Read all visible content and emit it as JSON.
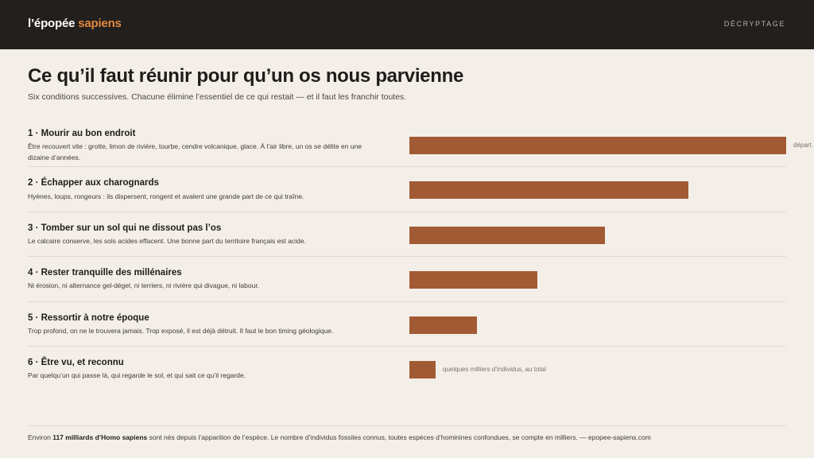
{
  "header": {
    "brand_main": "l’épopée ",
    "brand_accent": "sapiens",
    "nav_label": "DÉCRYPTAGE"
  },
  "page": {
    "title": "Ce qu’il faut réunir pour qu’un os nous parvienne",
    "subtitle": "Six conditions successives. Chacune élimine l’essentiel de ce qui restait — et il faut les franchir toutes."
  },
  "conditions": [
    {
      "title": "1 · Mourir au bon endroit",
      "desc": "Être recouvert vite : grotte, limon de rivière, tourbe, cendre volcanique, glace. À l’air libre, un os se délite en une dizaine d’années.",
      "relative_level": 1.0,
      "bar_label": "départ"
    },
    {
      "title": "2 · Échapper aux charognards",
      "desc": "Hyènes, loups, rongeurs : ils dispersent, rongent et avalent une grande part de ce qui traîne.",
      "relative_level": 0.74,
      "bar_label": ""
    },
    {
      "title": "3 · Tomber sur un sol qui ne dissout pas l’os",
      "desc": "Le calcaire conserve, les sols acides effacent. Une bonne part du territoire français est acide.",
      "relative_level": 0.52,
      "bar_label": ""
    },
    {
      "title": "4 · Rester tranquille des millénaires",
      "desc": "Ni érosion, ni alternance gel-dégel, ni terriers, ni rivière qui divague, ni labour.",
      "relative_level": 0.34,
      "bar_label": ""
    },
    {
      "title": "5 · Ressortir à notre époque",
      "desc": "Trop profond, on ne le trouvera jamais. Trop exposé, il est déjà détruit. Il faut le bon timing géologique.",
      "relative_level": 0.18,
      "bar_label": ""
    },
    {
      "title": "6 · Être vu, et reconnu",
      "desc": "Par quelqu’un qui passe là, qui regarde le sol, et qui sait ce qu’il regarde.",
      "relative_level": 0.07,
      "bar_label": "quelques milliers d’individus, au total"
    }
  ],
  "footer": {
    "prefix": "Environ ",
    "highlight": "117 milliards d’Homo sapiens",
    "suffix": " sont nés depuis l’apparition de l’espèce. Le nombre d’individus fossiles connus, toutes espèces d’hominines confondues, se compte en milliers. — epopee-sapiens.com"
  },
  "colors": {
    "bar": "#a25a34",
    "brand_accent": "#e0873f",
    "topbar": "#221f1d",
    "background": "#f3efe8"
  }
}
